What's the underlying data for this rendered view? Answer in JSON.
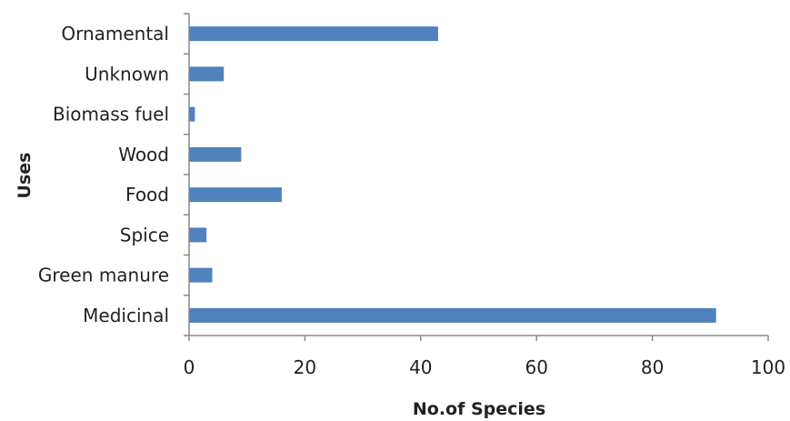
{
  "chart_data": {
    "type": "bar",
    "orientation": "horizontal",
    "categories": [
      "Ornamental",
      "Unknown",
      "Biomass fuel",
      "Wood",
      "Food",
      "Spice",
      "Green manure",
      "Medicinal"
    ],
    "values": [
      43,
      6,
      1,
      9,
      16,
      3,
      4,
      91
    ],
    "xlabel": "No.of Species",
    "ylabel": "Uses",
    "xlim": [
      0,
      100
    ],
    "xticks": [
      "0",
      "20",
      "40",
      "60",
      "80",
      "100"
    ],
    "grid": false,
    "bar_color": "#4f81bd",
    "axis_color": "#888888"
  }
}
